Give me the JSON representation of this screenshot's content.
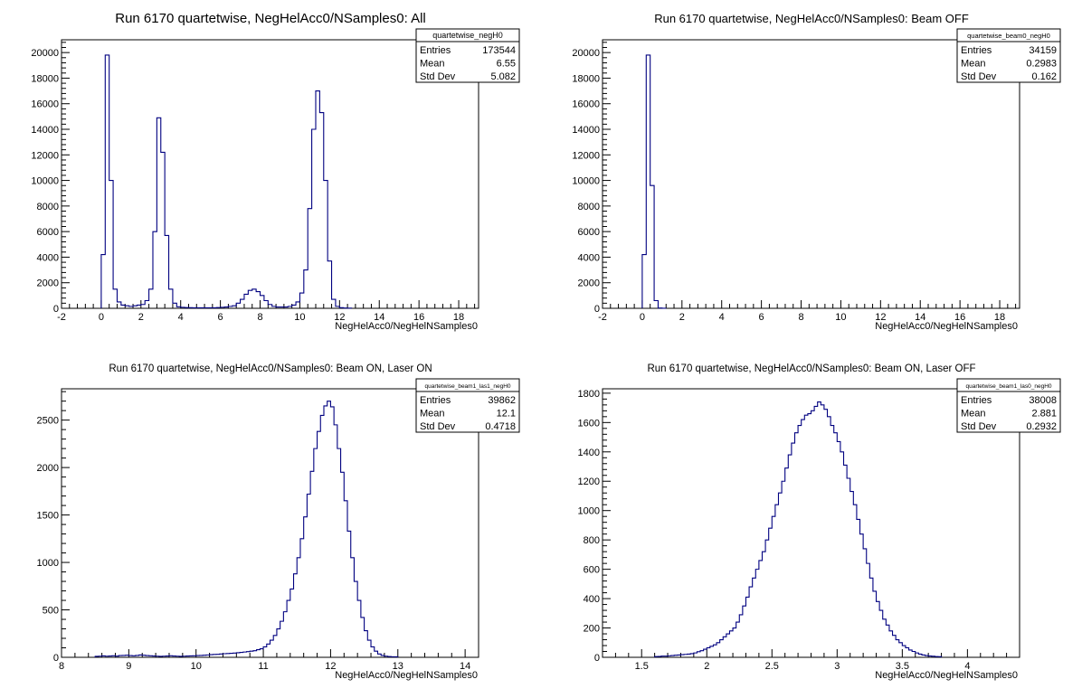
{
  "chart_data": [
    {
      "type": "histogram",
      "title": "Run 6170 quartetwise, NegHelAcc0/NSamples0: All",
      "xlabel": "NegHelAcc0/NegHelNSamples0",
      "ylabel": "",
      "xlim": [
        -2,
        19
      ],
      "ylim": [
        0,
        21000
      ],
      "x_ticks": [
        -2,
        0,
        2,
        4,
        6,
        8,
        10,
        12,
        14,
        16,
        18
      ],
      "y_ticks": [
        0,
        2000,
        4000,
        6000,
        8000,
        10000,
        12000,
        14000,
        16000,
        18000,
        20000
      ],
      "bin_width": 0.2,
      "bins_start": 0,
      "values": [
        4200,
        19800,
        10000,
        1500,
        500,
        250,
        200,
        150,
        200,
        250,
        300,
        600,
        1500,
        6000,
        14900,
        12200,
        5700,
        1500,
        400,
        120,
        80,
        60,
        50,
        40,
        40,
        40,
        40,
        40,
        40,
        60,
        80,
        100,
        150,
        200,
        400,
        700,
        1100,
        1400,
        1500,
        1300,
        1000,
        600,
        300,
        150,
        100,
        100,
        100,
        150,
        250,
        500,
        1200,
        3000,
        7800,
        14000,
        17000,
        15300,
        10000,
        3700,
        700,
        150,
        50,
        20,
        10
      ],
      "stats": {
        "name": "quartetwise_negH0",
        "entries": "173544",
        "mean": "6.55",
        "std_dev": "5.082"
      },
      "line_color": "#000080"
    },
    {
      "type": "histogram",
      "title": "Run 6170 quartetwise, NegHelAcc0/NSamples0: Beam OFF",
      "xlabel": "NegHelAcc0/NegHelNSamples0",
      "ylabel": "",
      "xlim": [
        -2,
        19
      ],
      "ylim": [
        0,
        21000
      ],
      "x_ticks": [
        -2,
        0,
        2,
        4,
        6,
        8,
        10,
        12,
        14,
        16,
        18
      ],
      "y_ticks": [
        0,
        2000,
        4000,
        6000,
        8000,
        10000,
        12000,
        14000,
        16000,
        18000,
        20000
      ],
      "bin_width": 0.2,
      "bins_start": 0,
      "values": [
        4200,
        19800,
        9600,
        600,
        20,
        5
      ],
      "stats": {
        "name": "quartetwise_beam0_negH0",
        "entries": "34159",
        "mean": "0.2983",
        "std_dev": "0.162"
      },
      "line_color": "#000080"
    },
    {
      "type": "histogram",
      "title": "Run 6170 quartetwise, NegHelAcc0/NSamples0: Beam ON, Laser ON",
      "xlabel": "NegHelAcc0/NegHelNSamples0",
      "ylabel": "",
      "xlim": [
        8,
        14.2
      ],
      "ylim": [
        0,
        2830
      ],
      "x_ticks": [
        8,
        9,
        10,
        11,
        12,
        13,
        14
      ],
      "y_ticks": [
        0,
        500,
        1000,
        1500,
        2000,
        2500
      ],
      "bin_width": 0.05,
      "bins_start": 8.5,
      "values": [
        10,
        12,
        15,
        12,
        14,
        16,
        13,
        18,
        20,
        22,
        18,
        16,
        20,
        24,
        22,
        18,
        16,
        14,
        12,
        10,
        12,
        14,
        16,
        14,
        12,
        10,
        12,
        14,
        15,
        16,
        18,
        20,
        22,
        25,
        28,
        30,
        32,
        35,
        38,
        40,
        42,
        45,
        48,
        52,
        56,
        60,
        65,
        70,
        80,
        90,
        110,
        140,
        180,
        230,
        300,
        380,
        480,
        600,
        720,
        880,
        1050,
        1250,
        1480,
        1720,
        1960,
        2200,
        2380,
        2550,
        2650,
        2700,
        2640,
        2450,
        2200,
        1950,
        1650,
        1330,
        1050,
        800,
        600,
        420,
        280,
        180,
        110,
        65,
        35,
        20,
        12,
        8,
        6,
        5
      ],
      "stats": {
        "name": "quartetwise_beam1_las1_negH0",
        "entries": "39862",
        "mean": "12.1",
        "std_dev": "0.4718"
      },
      "line_color": "#000080"
    },
    {
      "type": "histogram",
      "title": "Run 6170 quartetwise, NegHelAcc0/NSamples0: Beam ON, Laser OFF",
      "xlabel": "NegHelAcc0/NegHelNSamples0",
      "ylabel": "",
      "xlim": [
        1.2,
        4.4
      ],
      "ylim": [
        0,
        1830
      ],
      "x_ticks": [
        1.5,
        2,
        2.5,
        3,
        3.5,
        4
      ],
      "y_ticks": [
        0,
        200,
        400,
        600,
        800,
        1000,
        1200,
        1400,
        1600,
        1800
      ],
      "bin_width": 0.025,
      "bins_start": 1.6,
      "values": [
        5,
        6,
        8,
        8,
        10,
        12,
        14,
        16,
        18,
        20,
        22,
        25,
        30,
        38,
        45,
        55,
        65,
        75,
        85,
        100,
        120,
        140,
        160,
        180,
        200,
        240,
        290,
        350,
        410,
        480,
        540,
        600,
        660,
        720,
        800,
        880,
        960,
        1040,
        1120,
        1200,
        1290,
        1380,
        1460,
        1530,
        1580,
        1620,
        1650,
        1660,
        1680,
        1710,
        1740,
        1720,
        1690,
        1640,
        1580,
        1530,
        1470,
        1400,
        1310,
        1220,
        1130,
        1040,
        940,
        840,
        740,
        640,
        540,
        450,
        380,
        320,
        260,
        220,
        180,
        150,
        120,
        100,
        80,
        65,
        50,
        40,
        30,
        22,
        16,
        12,
        9,
        7,
        5,
        4
      ],
      "stats": {
        "name": "quartetwise_beam1_las0_negH0",
        "entries": "38008",
        "mean": "2.881",
        "std_dev": "0.2932"
      },
      "line_color": "#000080"
    }
  ],
  "stat_labels": {
    "entries": "Entries",
    "mean": "Mean",
    "std_dev": "Std Dev"
  }
}
